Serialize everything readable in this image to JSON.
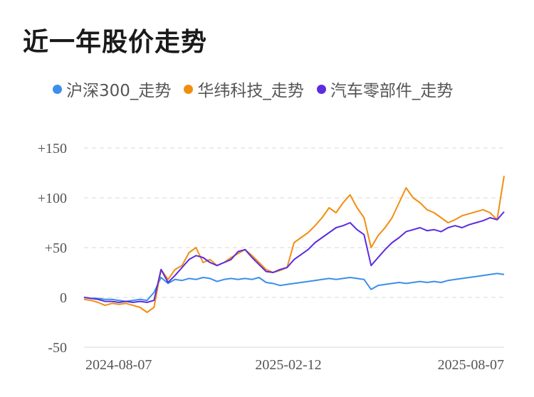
{
  "title": "近一年股价走势",
  "chart_data": {
    "type": "line",
    "title": "近一年股价走势",
    "x_tick_labels": [
      "2024-08-07",
      "2025-02-12",
      "2025-08-07"
    ],
    "y_ticks": [
      150,
      100,
      50,
      0,
      -50
    ],
    "y_tick_labels": [
      "+150",
      "+100",
      "+50",
      "0",
      "-50"
    ],
    "ylim": [
      -50,
      150
    ],
    "grid": true,
    "legend_position": "top",
    "series": [
      {
        "name": "沪深300_走势",
        "color": "#3b8fea",
        "values": [
          0,
          -1,
          -1,
          -2,
          -2,
          -3,
          -4,
          -3,
          -2,
          -3,
          5,
          20,
          14,
          18,
          17,
          19,
          18,
          20,
          19,
          16,
          18,
          19,
          18,
          19,
          18,
          20,
          15,
          14,
          12,
          13,
          14,
          15,
          16,
          17,
          18,
          19,
          18,
          19,
          20,
          19,
          18,
          8,
          12,
          13,
          14,
          15,
          14,
          15,
          16,
          15,
          16,
          15,
          17,
          18,
          19,
          20,
          21,
          22,
          23,
          24,
          23
        ]
      },
      {
        "name": "华纬科技_走势",
        "color": "#f28e0f",
        "values": [
          -2,
          -3,
          -5,
          -8,
          -6,
          -7,
          -6,
          -8,
          -10,
          -15,
          -10,
          28,
          18,
          28,
          32,
          45,
          50,
          35,
          38,
          32,
          35,
          40,
          44,
          48,
          42,
          35,
          28,
          25,
          27,
          30,
          55,
          60,
          65,
          72,
          80,
          90,
          85,
          95,
          103,
          90,
          80,
          50,
          62,
          70,
          80,
          95,
          110,
          100,
          95,
          88,
          85,
          80,
          75,
          78,
          82,
          84,
          86,
          88,
          85,
          78,
          122
        ]
      },
      {
        "name": "汽车零部件_走势",
        "color": "#5b2ce0",
        "values": [
          0,
          -1,
          -2,
          -4,
          -4,
          -5,
          -4,
          -5,
          -4,
          -5,
          -3,
          28,
          15,
          22,
          30,
          38,
          42,
          40,
          35,
          32,
          35,
          38,
          46,
          48,
          40,
          33,
          26,
          25,
          28,
          30,
          38,
          43,
          48,
          55,
          60,
          65,
          70,
          72,
          75,
          68,
          63,
          32,
          40,
          48,
          55,
          60,
          66,
          68,
          70,
          67,
          68,
          66,
          70,
          72,
          70,
          73,
          75,
          77,
          80,
          78,
          86
        ]
      }
    ]
  }
}
